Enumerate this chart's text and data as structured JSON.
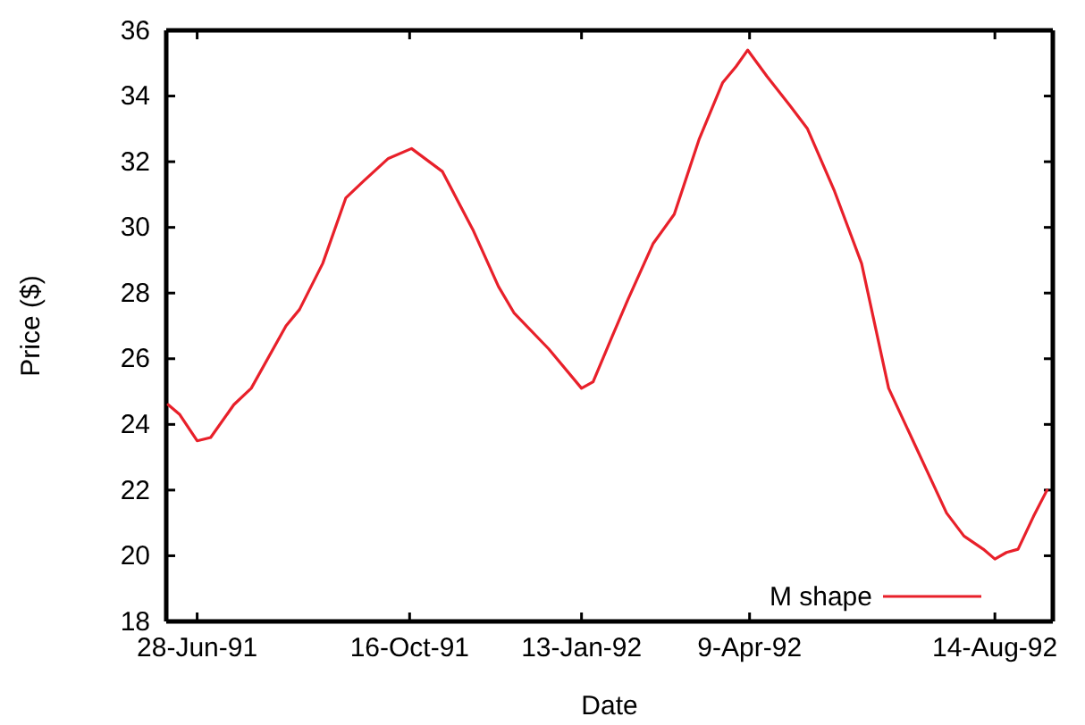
{
  "chart_data": {
    "type": "line",
    "xlabel": "Date",
    "ylabel": "Price ($)",
    "xlim": [
      "1991-06-12",
      "1992-09-13"
    ],
    "xticks": [
      {
        "value": "1991-06-28",
        "label": "28-Jun-91"
      },
      {
        "value": "1991-10-16",
        "label": "16-Oct-91"
      },
      {
        "value": "1992-01-13",
        "label": "13-Jan-92"
      },
      {
        "value": "1992-04-09",
        "label": "9-Apr-92"
      },
      {
        "value": "1992-08-14",
        "label": "14-Aug-92"
      }
    ],
    "ylim": [
      18,
      36
    ],
    "yticks": [
      18,
      20,
      22,
      24,
      26,
      28,
      30,
      32,
      34,
      36
    ],
    "grid": false,
    "legend": "bottom right",
    "marker": "none",
    "line_style": "solid",
    "series": [
      {
        "name": "M shape",
        "color": "#e8202a",
        "x": [
          "1991-06-13",
          "1991-06-19",
          "1991-06-28",
          "1991-07-05",
          "1991-07-17",
          "1991-07-26",
          "1991-08-13",
          "1991-08-20",
          "1991-09-01",
          "1991-09-13",
          "1991-09-22",
          "1991-10-05",
          "1991-10-17",
          "1991-11-02",
          "1991-11-18",
          "1991-12-01",
          "1991-12-09",
          "1991-12-27",
          "1992-01-13",
          "1992-01-19",
          "1992-01-29",
          "1992-02-06",
          "1992-02-19",
          "1992-03-01",
          "1992-03-14",
          "1992-03-26",
          "1992-04-02",
          "1992-04-08",
          "1992-04-18",
          "1992-04-30",
          "1992-05-09",
          "1992-05-23",
          "1992-06-06",
          "1992-06-20",
          "1992-07-05",
          "1992-07-20",
          "1992-07-29",
          "1992-08-08",
          "1992-08-14",
          "1992-08-20",
          "1992-08-26",
          "1992-09-03",
          "1992-09-10"
        ],
        "values": [
          24.6,
          24.3,
          23.5,
          23.6,
          24.6,
          25.1,
          27.0,
          27.5,
          28.9,
          30.9,
          31.4,
          32.1,
          32.4,
          31.7,
          29.9,
          28.2,
          27.4,
          26.3,
          25.1,
          25.3,
          26.7,
          27.8,
          29.5,
          30.4,
          32.7,
          34.4,
          34.9,
          35.4,
          34.6,
          33.7,
          33.0,
          31.1,
          28.9,
          25.1,
          23.2,
          21.3,
          20.6,
          20.2,
          19.9,
          20.1,
          20.2,
          21.2,
          22.0
        ]
      }
    ]
  }
}
